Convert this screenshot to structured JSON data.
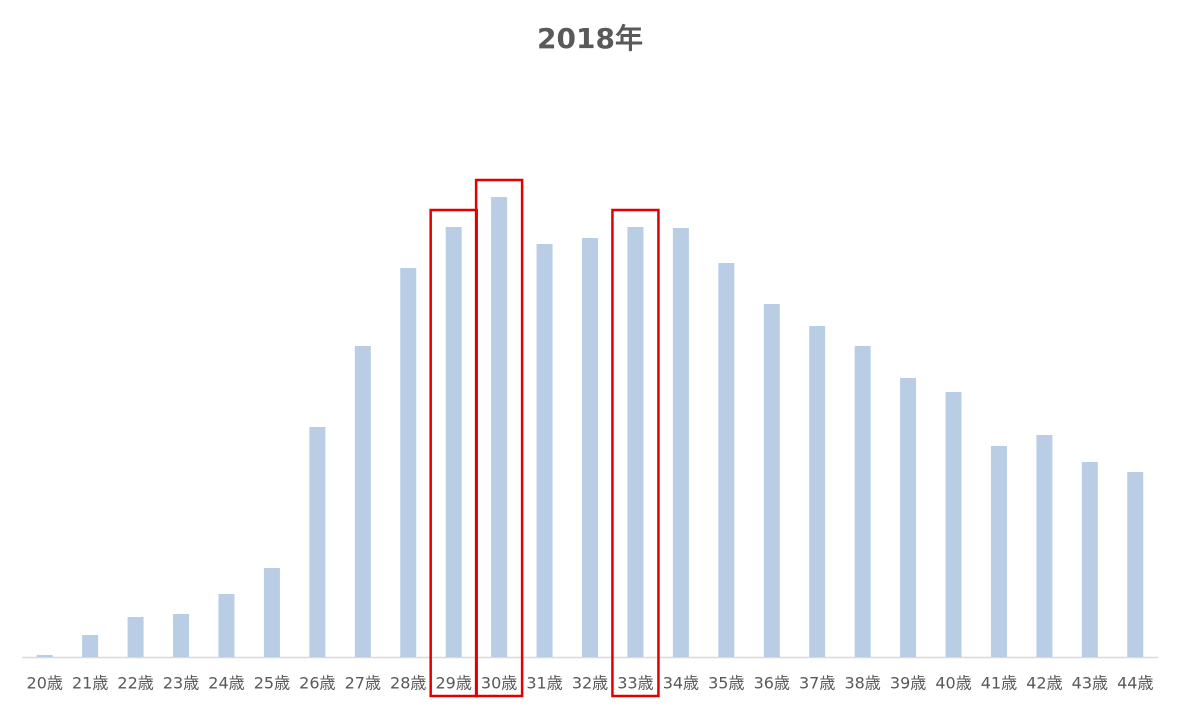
{
  "chart_data": {
    "type": "bar",
    "title": "2018年",
    "categories": [
      "20歳",
      "21歳",
      "22歳",
      "23歳",
      "24歳",
      "25歳",
      "26歳",
      "27歳",
      "28歳",
      "29歳",
      "30歳",
      "31歳",
      "32歳",
      "33歳",
      "34歳",
      "35歳",
      "36歳",
      "37歳",
      "38歳",
      "39歳",
      "40歳",
      "41歳",
      "42歳",
      "43歳",
      "44歳"
    ],
    "values": [
      2,
      22,
      40,
      43,
      63,
      89,
      230,
      311,
      389,
      430,
      460,
      413,
      419,
      430,
      429,
      394,
      353,
      331,
      311,
      279,
      265,
      211,
      222,
      195,
      185
    ],
    "color": "#b9cde5",
    "ylim": [
      0,
      500
    ],
    "highlight": [
      9,
      10,
      13
    ],
    "highlight_color": "#e00000"
  }
}
